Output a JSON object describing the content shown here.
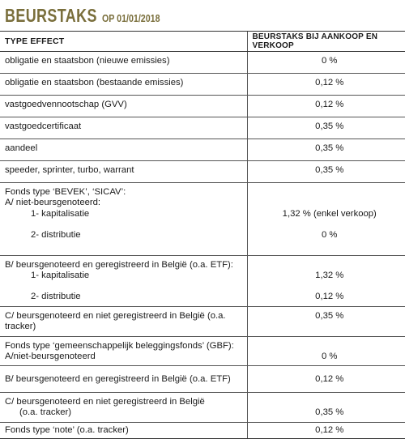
{
  "header": {
    "title": "BEURSTAKS",
    "subtitle": "OP 01/01/2018"
  },
  "columns": [
    "TYPE EFFECT",
    "BEURSTAKS BIJ AANKOOP EN VERKOOP"
  ],
  "rows": [
    {
      "effect": "obligatie en staatsbon (nieuwe emissies)",
      "rate": "0 %"
    },
    {
      "effect": "obligatie en staatsbon (bestaande emissies)",
      "rate": "0,12 %"
    },
    {
      "effect": "vastgoedvennootschap (GVV)",
      "rate": "0,12 %"
    },
    {
      "effect": "vastgoedcertificaat",
      "rate": "0,35 %"
    },
    {
      "effect": "aandeel",
      "rate": "0,35 %"
    },
    {
      "effect": "speeder, sprinter, turbo, warrant",
      "rate": "0,35 %"
    }
  ],
  "sicav": {
    "heading": "Fonds type ‘BEVEK’, ‘SICAV’:",
    "groupA": {
      "label": "A/ niet-beursgenoteerd:",
      "items": [
        {
          "label": "1- kapitalisatie",
          "rate": "1,32 % (enkel verkoop)"
        },
        {
          "label": "2- distributie",
          "rate": "0 %"
        }
      ]
    },
    "groupB": {
      "label": "B/ beursgenoteerd en geregistreerd in België (o.a. ETF):",
      "items": [
        {
          "label": "1- kapitalisatie",
          "rate": "1,32 %"
        },
        {
          "label": "2- distributie",
          "rate": "0,12 %"
        }
      ]
    },
    "groupC": {
      "label": "C/ beursgenoteerd en niet geregistreerd in België (o.a. tracker)",
      "rate": "0,35 %"
    }
  },
  "gbf": {
    "heading": "Fonds type ‘gemeenschappelijk beleggingsfonds’ (GBF):",
    "groupA": {
      "label": "A/niet-beursgenoteerd",
      "rate": "0 %"
    },
    "groupB": {
      "label": "B/ beursgenoteerd en geregistreerd in België (o.a. ETF)",
      "rate": "0,12 %"
    },
    "groupC": {
      "label_line1": "C/ beursgenoteerd en niet geregistreerd in België",
      "label_line2": "(o.a. tracker)",
      "rate": "0,35 %"
    }
  },
  "note": {
    "label": "Fonds type ‘note’ (o.a. tracker)",
    "rate": "0,12 %"
  }
}
